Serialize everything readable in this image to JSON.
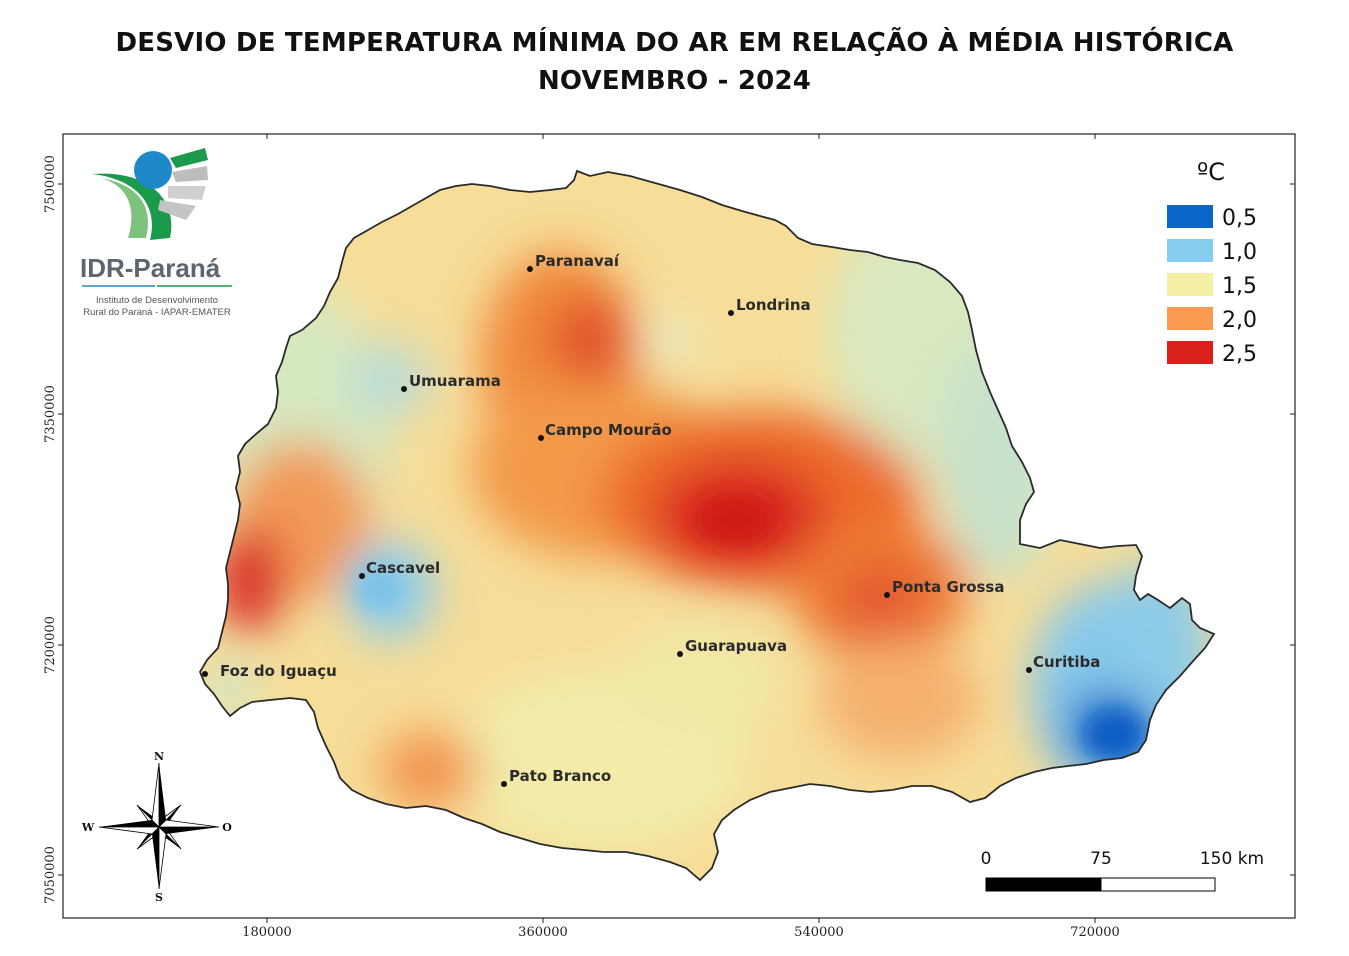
{
  "title": {
    "line1": "DESVIO DE TEMPERATURA MÍNIMA DO AR EM RELAÇÃO À MÉDIA HISTÓRICA",
    "line2": "NOVEMBRO - 2024"
  },
  "logo": {
    "name": "IDR-Paraná",
    "subtitle_line1": "Instituto de Desenvolvimento",
    "subtitle_line2": "Rural do Paraná - IAPAR-EMATER",
    "colors": {
      "green": "#1a9a4a",
      "blue": "#1e88c8",
      "gray": "#c8c8c8"
    }
  },
  "legend": {
    "unit": "ºC",
    "items": [
      {
        "label": "0,5",
        "color": "#0a66c8"
      },
      {
        "label": "1,0",
        "color": "#85cdf0"
      },
      {
        "label": "1,5",
        "color": "#f6f0a6"
      },
      {
        "label": "2,0",
        "color": "#fb9a50"
      },
      {
        "label": "2,5",
        "color": "#d9201c"
      }
    ]
  },
  "cities": [
    {
      "name": "Paranavaí"
    },
    {
      "name": "Londrina"
    },
    {
      "name": "Umuarama"
    },
    {
      "name": "Campo Mourão"
    },
    {
      "name": "Cascavel"
    },
    {
      "name": "Ponta Grossa"
    },
    {
      "name": "Guarapuava"
    },
    {
      "name": "Curitiba"
    },
    {
      "name": "Foz do Iguaçu"
    },
    {
      "name": "Pato Branco"
    }
  ],
  "axes": {
    "x_ticks": [
      "180000",
      "360000",
      "540000",
      "720000"
    ],
    "y_ticks": [
      "7500000",
      "7350000",
      "7200000",
      "7050000"
    ]
  },
  "scale_bar": {
    "labels": [
      "0",
      "75",
      "150 km"
    ]
  },
  "compass": {
    "north": "N",
    "south": "S",
    "west": "W",
    "east": "O"
  }
}
